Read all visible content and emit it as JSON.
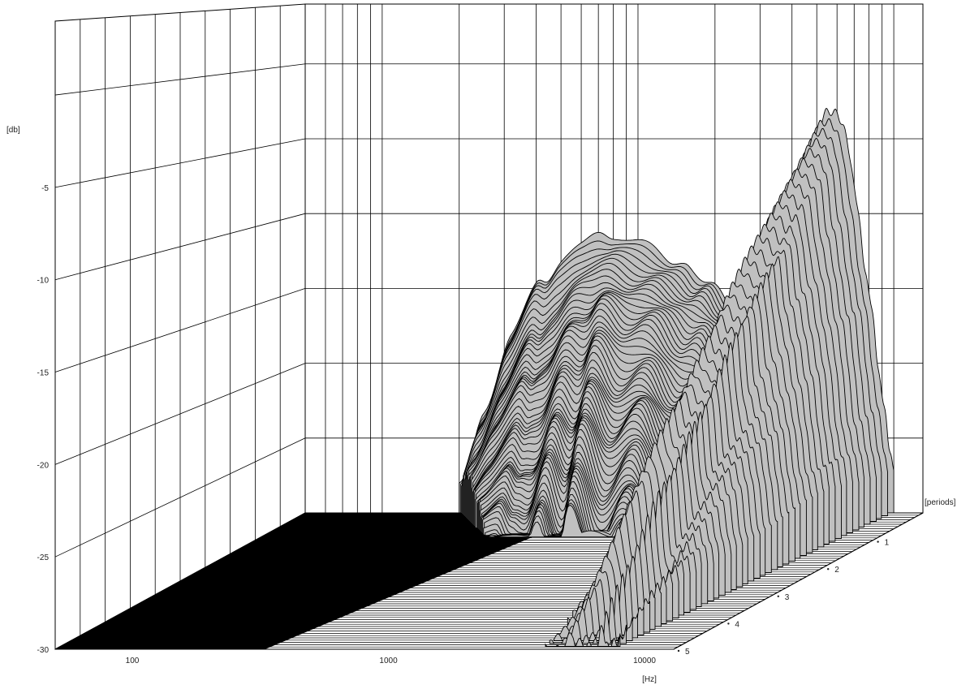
{
  "chart_data": {
    "type": "area",
    "title": "",
    "xlabel": "[Hz]",
    "ylabel": "[db]",
    "zlabel": "[periods]",
    "x_scale": "log",
    "xlim": [
      50,
      13000
    ],
    "ylim": [
      -30,
      4
    ],
    "zlim": [
      0,
      5
    ],
    "x_ticks": [
      100,
      1000,
      10000
    ],
    "y_ticks": [
      -5,
      -10,
      -15,
      -20,
      -25,
      -30
    ],
    "z_ticks": [
      1,
      2,
      3,
      4,
      5
    ],
    "grid": true,
    "colors": {
      "surface": "#c0c0c0",
      "slice_line": "#000000",
      "floor": "#000000",
      "grid": "#000000"
    },
    "series": [
      {
        "slice_count": 60,
        "x": [
          200,
          250,
          320,
          400,
          450,
          500,
          600,
          700,
          800,
          1000,
          1300,
          1600,
          2000,
          2500,
          3000,
          3500,
          3700
        ],
        "peak_db": [
          -25,
          -17,
          -12,
          -10.5,
          -11.8,
          -11.5,
          -11.5,
          -11.2,
          -11.6,
          -11.7,
          -11.6,
          -11,
          -9.8,
          -9.1,
          -7.7,
          -9.2,
          -9.8
        ],
        "decay_shape": [
          1,
          1,
          1,
          0.9,
          1.2,
          1.3,
          0.8,
          1.2,
          0.7,
          1.2,
          0.8,
          1.25,
          0.7,
          1.3,
          1.2,
          1.4,
          1.6
        ]
      },
      {
        "slice_count": 48,
        "x": [
          3000,
          3500,
          4000,
          5000,
          5500,
          6000,
          6500,
          7000,
          8000,
          9000,
          10000
        ],
        "peak_db": [
          -30,
          -20,
          -11,
          -4,
          -3,
          -2.8,
          -3.2,
          -5,
          -9,
          -15,
          -21
        ],
        "decay_shape": [
          1,
          1,
          1,
          0.9,
          1.2,
          1.3,
          0.8,
          1.2,
          0.7,
          1.2,
          0.8
        ]
      }
    ]
  }
}
